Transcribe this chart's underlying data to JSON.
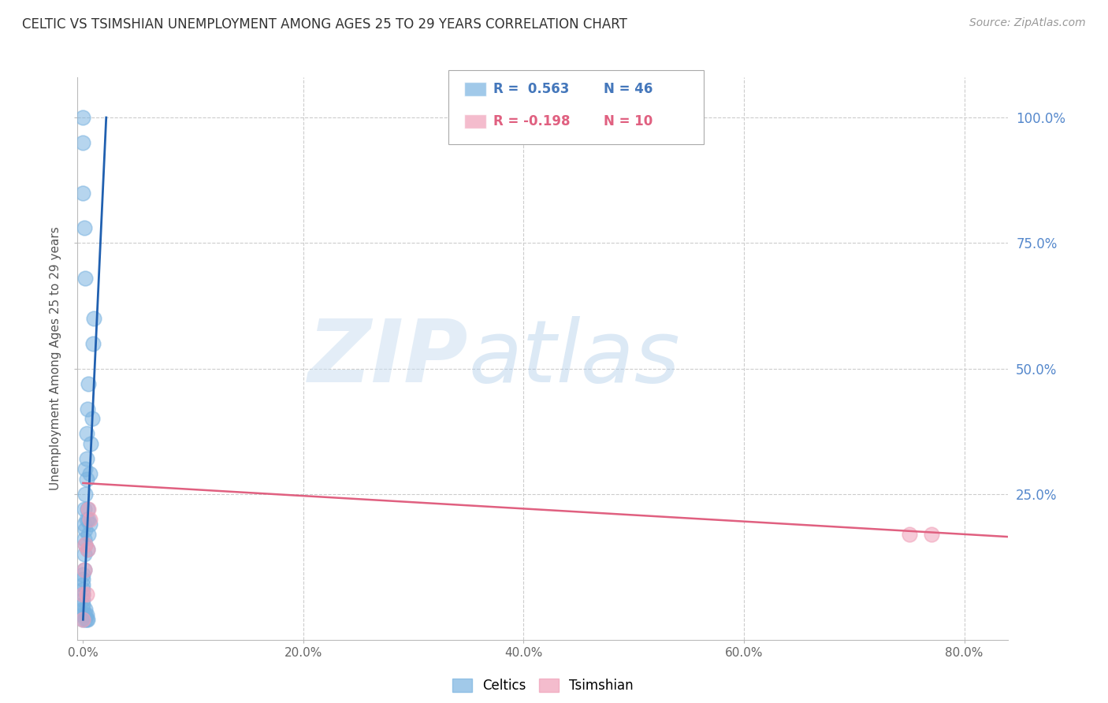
{
  "title": "CELTIC VS TSIMSHIAN UNEMPLOYMENT AMONG AGES 25 TO 29 YEARS CORRELATION CHART",
  "source": "Source: ZipAtlas.com",
  "ylabel": "Unemployment Among Ages 25 to 29 years",
  "xlabel_ticks": [
    "0.0%",
    "20.0%",
    "40.0%",
    "60.0%",
    "80.0%"
  ],
  "xlabel_vals": [
    0.0,
    0.2,
    0.4,
    0.6,
    0.8
  ],
  "ylabel_ticks": [
    "100.0%",
    "75.0%",
    "50.0%",
    "25.0%"
  ],
  "ylabel_vals": [
    1.0,
    0.75,
    0.5,
    0.25
  ],
  "xlim": [
    -0.005,
    0.84
  ],
  "ylim": [
    -0.04,
    1.08
  ],
  "celtics_color": "#7ab3e0",
  "tsimshian_color": "#f0a0b8",
  "celtics_line_color": "#2060b0",
  "tsimshian_line_color": "#e06080",
  "watermark_zip": "ZIP",
  "watermark_atlas": "atlas",
  "legend_r_celtics": "R =  0.563",
  "legend_n_celtics": "N = 46",
  "legend_r_tsimshian": "R = -0.198",
  "legend_n_tsimshian": "N = 10",
  "celtics_x": [
    0.0,
    0.0,
    0.0,
    0.0,
    0.0,
    0.0,
    0.0,
    0.0,
    0.0,
    0.0,
    0.002,
    0.002,
    0.002,
    0.002,
    0.002,
    0.003,
    0.003,
    0.003,
    0.003,
    0.004,
    0.004,
    0.004,
    0.005,
    0.005,
    0.006,
    0.006,
    0.007,
    0.008,
    0.009,
    0.01,
    0.0,
    0.001,
    0.001,
    0.001,
    0.001,
    0.001,
    0.002,
    0.002,
    0.003,
    0.003,
    0.004,
    0.005,
    0.0,
    0.0,
    0.001,
    0.002
  ],
  "celtics_y": [
    0.0,
    0.01,
    0.02,
    0.03,
    0.04,
    0.05,
    0.06,
    0.07,
    0.08,
    0.09,
    0.0,
    0.01,
    0.02,
    0.15,
    0.18,
    0.0,
    0.01,
    0.2,
    0.28,
    0.0,
    0.14,
    0.22,
    0.17,
    0.2,
    0.19,
    0.29,
    0.35,
    0.4,
    0.55,
    0.6,
    0.85,
    0.1,
    0.13,
    0.16,
    0.19,
    0.22,
    0.25,
    0.3,
    0.32,
    0.37,
    0.42,
    0.47,
    1.0,
    0.95,
    0.78,
    0.68
  ],
  "tsimshian_x": [
    0.0,
    0.0,
    0.001,
    0.002,
    0.003,
    0.004,
    0.005,
    0.006,
    0.75,
    0.77
  ],
  "tsimshian_y": [
    0.0,
    0.05,
    0.1,
    0.15,
    0.05,
    0.14,
    0.22,
    0.2,
    0.17,
    0.17
  ],
  "celtics_regline_x": [
    0.0,
    0.021
  ],
  "celtics_regline_y": [
    0.0,
    1.0
  ],
  "tsimshian_regline_x": [
    0.0,
    0.84
  ],
  "tsimshian_regline_y": [
    0.272,
    0.165
  ],
  "background_color": "#ffffff",
  "grid_color": "#cccccc"
}
